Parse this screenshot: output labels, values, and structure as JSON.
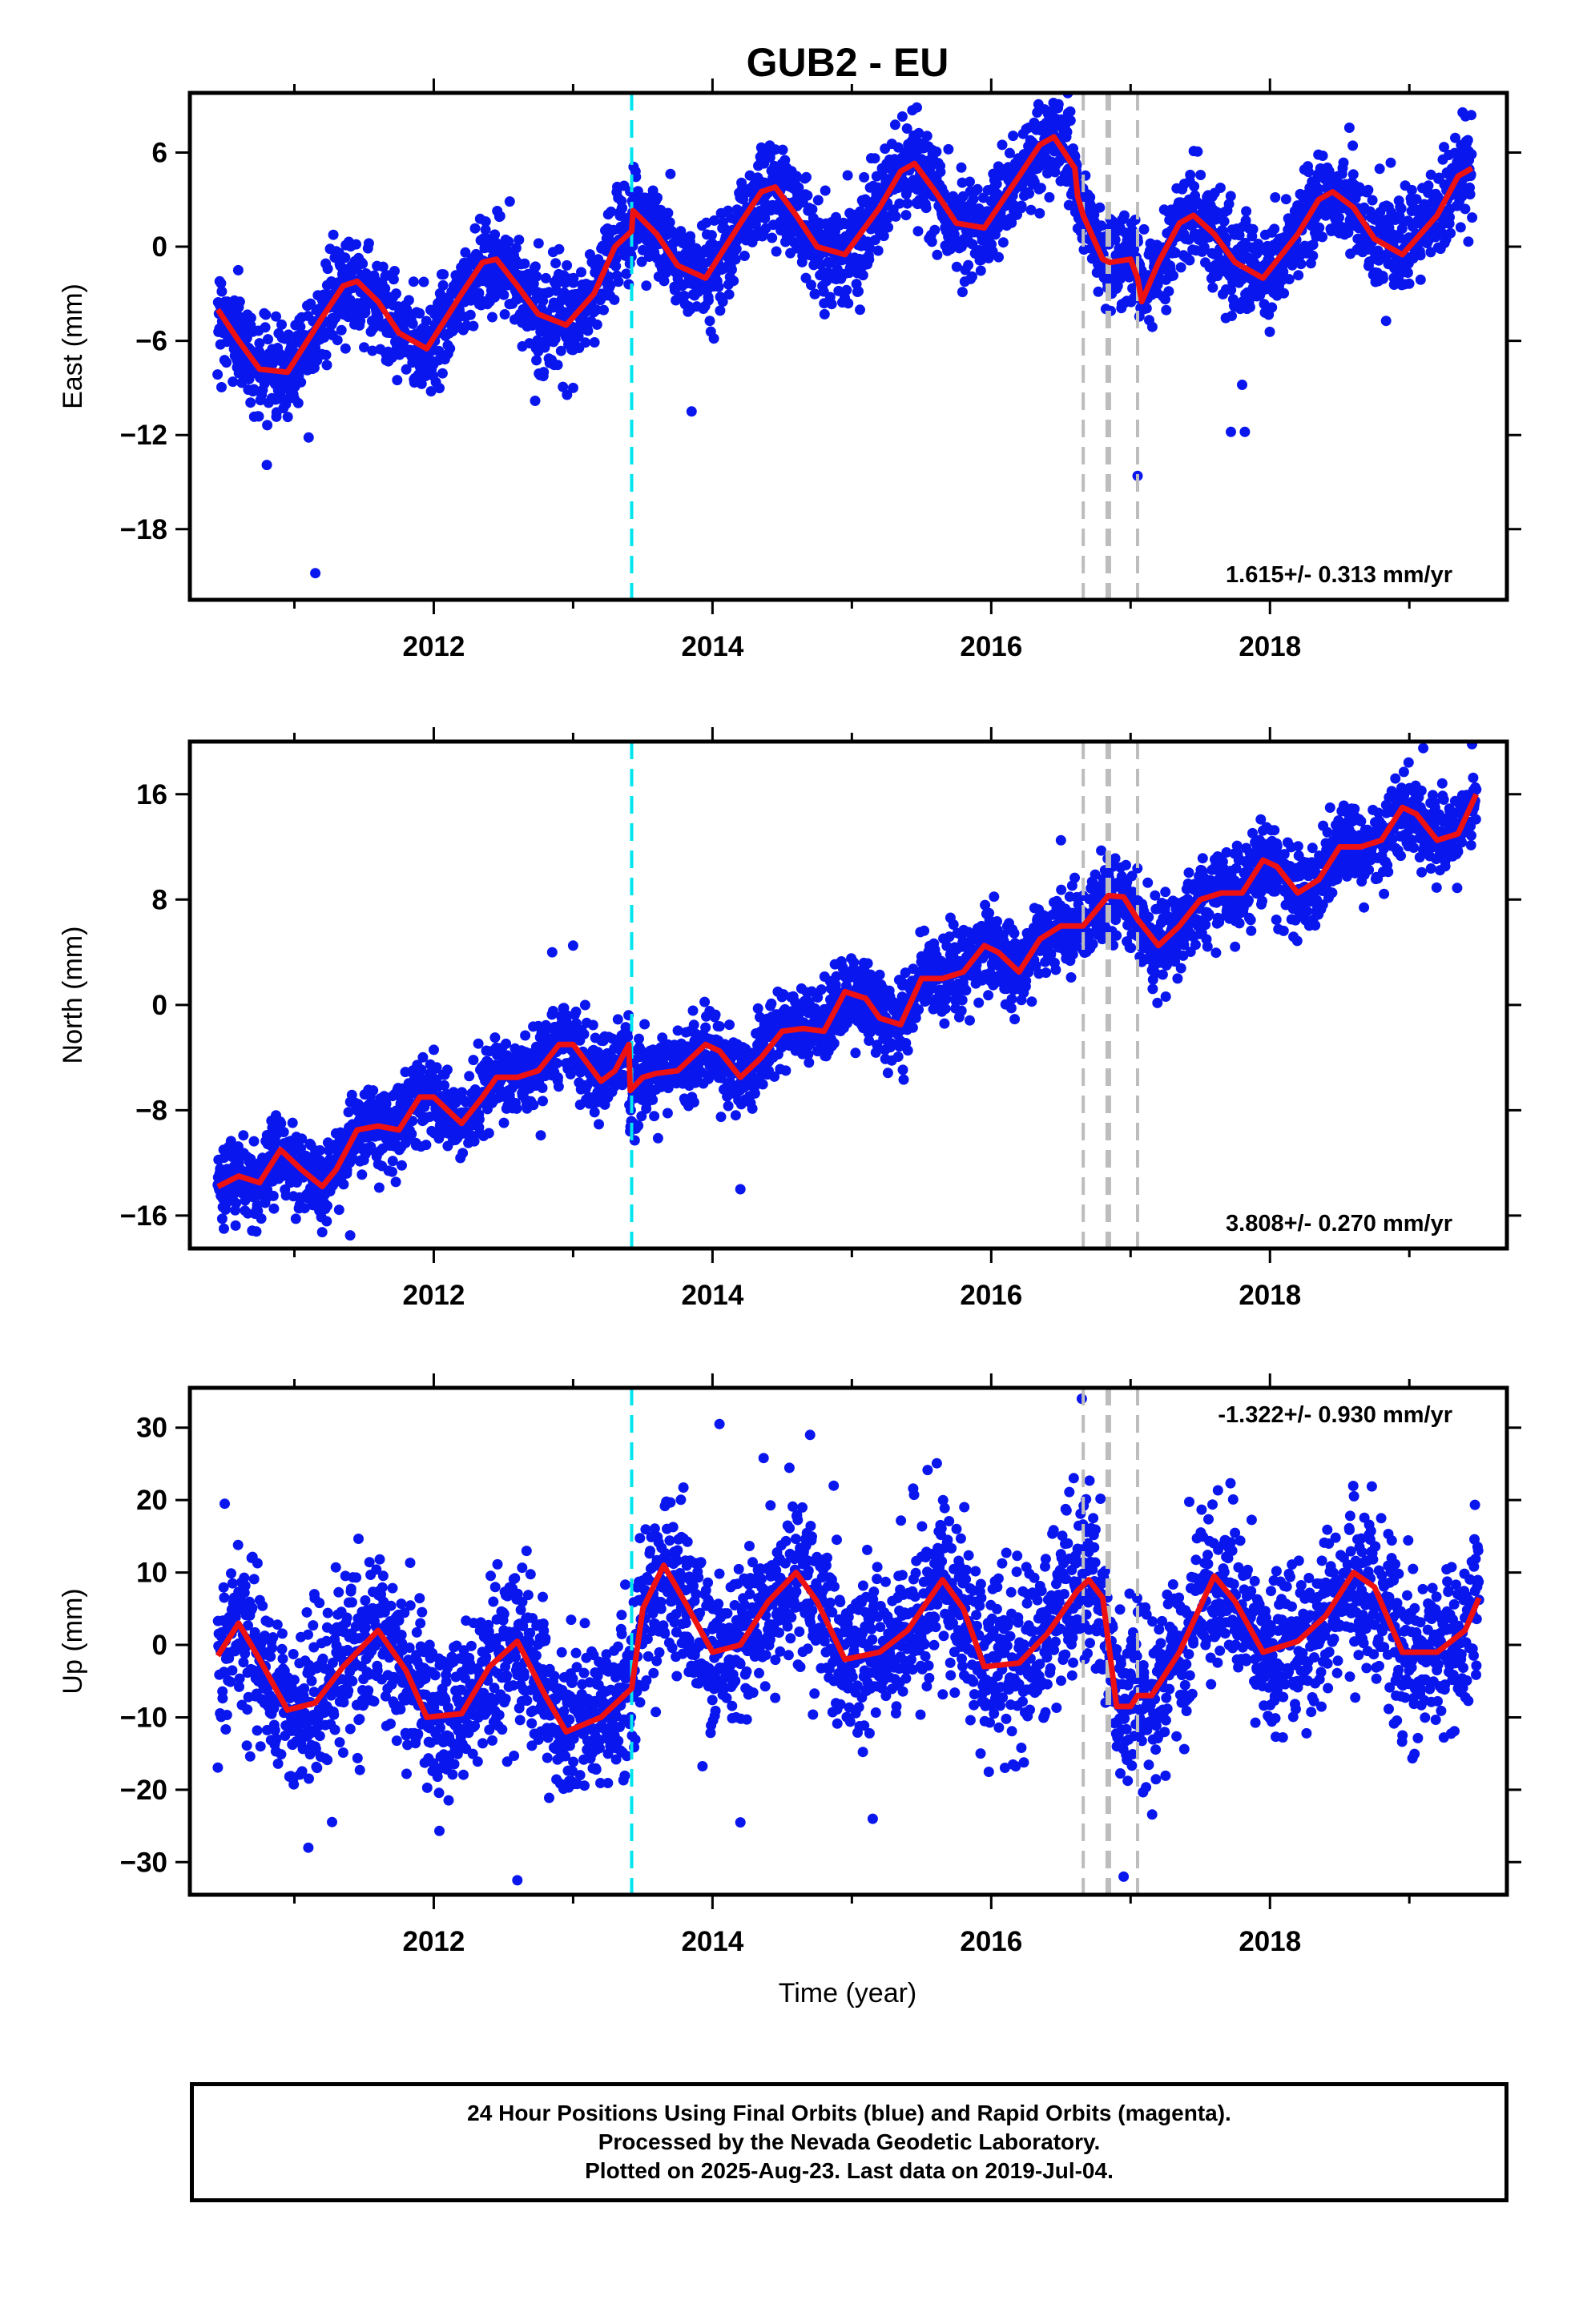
{
  "title": "GUB2 - EU",
  "xlabel": "Time (year)",
  "colors": {
    "points": "#0a16ee",
    "model": "#ee1111",
    "event_cyan": "#00e5ee",
    "event_gray": "#bdbdbd"
  },
  "chart_data": [
    {
      "type": "scatter",
      "name": "east",
      "ylabel": "East (mm)",
      "rate": "1.615+/- 0.313 mm/yr",
      "xlim": [
        2010.25,
        2019.7
      ],
      "ylim": [
        -22.5,
        9.8
      ],
      "xticks": [
        "2012",
        "2014",
        "2016",
        "2018"
      ],
      "yticks": [
        6,
        0,
        -6,
        -12,
        -18
      ],
      "ytick_labels": [
        "6",
        "0",
        "−6",
        "−12",
        "−18"
      ],
      "model": {
        "x": [
          2010.45,
          2010.6,
          2010.75,
          2010.95,
          2011.2,
          2011.35,
          2011.45,
          2011.6,
          2011.75,
          2011.95,
          2012.2,
          2012.35,
          2012.45,
          2012.6,
          2012.75,
          2012.95,
          2013.15,
          2013.3,
          2013.42,
          2013.43,
          2013.6,
          2013.75,
          2013.95,
          2014.2,
          2014.35,
          2014.45,
          2014.6,
          2014.75,
          2014.95,
          2015.2,
          2015.35,
          2015.45,
          2015.6,
          2015.75,
          2015.95,
          2016.2,
          2016.35,
          2016.45,
          2016.6,
          2016.62,
          2016.66,
          2016.8,
          2016.85,
          2017.0,
          2017.05,
          2017.08,
          2017.2,
          2017.35,
          2017.45,
          2017.6,
          2017.75,
          2017.95,
          2018.2,
          2018.35,
          2018.45,
          2018.6,
          2018.75,
          2018.95,
          2019.2,
          2019.35,
          2019.45
        ],
        "y": [
          -4.0,
          -6.0,
          -7.8,
          -8.0,
          -4.5,
          -2.5,
          -2.2,
          -3.5,
          -5.5,
          -6.5,
          -3.0,
          -1.0,
          -0.8,
          -2.5,
          -4.3,
          -5.0,
          -3.0,
          0.0,
          1.0,
          2.3,
          0.8,
          -1.2,
          -2.0,
          1.5,
          3.5,
          3.8,
          2.0,
          0.0,
          -0.5,
          2.5,
          4.8,
          5.3,
          3.5,
          1.5,
          1.2,
          4.5,
          6.5,
          7.0,
          5.0,
          3.2,
          2.0,
          -0.8,
          -1.0,
          -0.8,
          -2.0,
          -3.5,
          -1.0,
          1.5,
          2.0,
          0.8,
          -1.0,
          -2.0,
          0.8,
          3.0,
          3.5,
          2.5,
          0.5,
          -0.5,
          2.0,
          4.5,
          5.0
        ]
      },
      "model_breaks_after": [],
      "events": {
        "cyan": [
          2013.42
        ],
        "gray": [
          2016.66,
          2016.84,
          2017.05
        ],
        "gray_thick": [
          2016.84
        ]
      },
      "scatter": {
        "sigma": 1.5,
        "count": 3300,
        "outliers": [
          [
            2011.15,
            -20.8
          ],
          [
            2013.85,
            -10.5
          ],
          [
            2017.05,
            -14.6
          ],
          [
            2017.72,
            -11.8
          ],
          [
            2017.8,
            -8.8
          ],
          [
            2017.82,
            -11.8
          ],
          [
            2013.0,
            -9.0
          ]
        ]
      }
    },
    {
      "type": "scatter",
      "name": "north",
      "ylabel": "North (mm)",
      "rate": "3.808+/- 0.270 mm/yr",
      "xlim": [
        2010.25,
        2019.7
      ],
      "ylim": [
        -18.5,
        20.0
      ],
      "xticks": [
        "2012",
        "2014",
        "2016",
        "2018"
      ],
      "yticks": [
        16,
        8,
        0,
        -8,
        -16
      ],
      "ytick_labels": [
        "16",
        "8",
        "0",
        "−8",
        "−16"
      ],
      "model": {
        "x": [
          2010.45,
          2010.6,
          2010.75,
          2010.9,
          2011.05,
          2011.2,
          2011.3,
          2011.45,
          2011.6,
          2011.75,
          2011.9,
          2012.0,
          2012.1,
          2012.2,
          2012.35,
          2012.45,
          2012.6,
          2012.75,
          2012.9,
          2013.0,
          2013.2,
          2013.3,
          2013.4,
          2013.41,
          2013.5,
          2013.6,
          2013.75,
          2013.95,
          2014.05,
          2014.2,
          2014.35,
          2014.5,
          2014.65,
          2014.8,
          2014.95,
          2015.1,
          2015.2,
          2015.35,
          2015.5,
          2015.65,
          2015.8,
          2015.95,
          2016.05,
          2016.2,
          2016.35,
          2016.5,
          2016.66,
          2016.84,
          2016.95,
          2017.05,
          2017.2,
          2017.35,
          2017.5,
          2017.65,
          2017.8,
          2017.95,
          2018.05,
          2018.2,
          2018.35,
          2018.5,
          2018.65,
          2018.8,
          2018.95,
          2019.05,
          2019.2,
          2019.35,
          2019.48
        ],
        "y": [
          -13.8,
          -13.0,
          -13.5,
          -11.0,
          -12.5,
          -13.8,
          -12.5,
          -9.5,
          -9.2,
          -9.5,
          -7.0,
          -7.0,
          -8.0,
          -9.0,
          -7.0,
          -5.5,
          -5.5,
          -5.0,
          -3.0,
          -3.0,
          -5.8,
          -5.0,
          -3.0,
          -6.5,
          -5.5,
          -5.2,
          -5.0,
          -3.0,
          -3.5,
          -5.5,
          -4.0,
          -2.0,
          -1.8,
          -2.0,
          1.0,
          0.5,
          -1.0,
          -1.5,
          2.0,
          2.0,
          2.5,
          4.5,
          4.0,
          2.5,
          5.0,
          6.0,
          6.0,
          8.3,
          8.2,
          6.5,
          4.5,
          6.0,
          8.0,
          8.5,
          8.5,
          11.0,
          10.5,
          8.5,
          9.5,
          12.0,
          12.0,
          12.5,
          15.0,
          14.5,
          12.5,
          13.0,
          16.0
        ]
      },
      "model_breaks_after": [],
      "events": {
        "cyan": [
          2013.42
        ],
        "gray": [
          2016.66,
          2016.84,
          2017.05
        ],
        "gray_thick": [
          2016.84
        ]
      },
      "scatter": {
        "sigma": 1.5,
        "count": 3300,
        "outliers": [
          [
            2011.4,
            -17.5
          ],
          [
            2014.2,
            -14.0
          ],
          [
            2016.5,
            12.5
          ],
          [
            2019.1,
            19.5
          ],
          [
            2019.45,
            19.8
          ],
          [
            2012.85,
            4.0
          ],
          [
            2013.0,
            4.5
          ]
        ]
      }
    },
    {
      "type": "scatter",
      "name": "up",
      "ylabel": "Up (mm)",
      "rate": "-1.322+/- 0.930 mm/yr",
      "xlim": [
        2010.25,
        2019.7
      ],
      "ylim": [
        -34.5,
        35.5
      ],
      "xticks": [
        "2012",
        "2014",
        "2016",
        "2018"
      ],
      "yticks": [
        30,
        20,
        10,
        0,
        -10,
        -20,
        -30
      ],
      "ytick_labels": [
        "30",
        "20",
        "10",
        "0",
        "−10",
        "−20",
        "−30"
      ],
      "model": {
        "x": [
          2010.45,
          2010.6,
          2010.75,
          2010.95,
          2011.15,
          2011.35,
          2011.6,
          2011.8,
          2011.95,
          2012.2,
          2012.4,
          2012.6,
          2012.8,
          2012.95,
          2013.2,
          2013.42,
          2013.5,
          2013.65,
          2013.8,
          2014.0,
          2014.2,
          2014.4,
          2014.6,
          2014.75,
          2014.95,
          2015.2,
          2015.4,
          2015.65,
          2015.8,
          2015.95,
          2016.2,
          2016.4,
          2016.62,
          2016.7,
          2016.8,
          2016.9,
          2017.0,
          2017.05,
          2017.15,
          2017.35,
          2017.6,
          2017.75,
          2017.95,
          2018.2,
          2018.4,
          2018.6,
          2018.75,
          2018.95,
          2019.2,
          2019.4,
          2019.5
        ],
        "y": [
          -1.5,
          3.0,
          -2.0,
          -9.0,
          -8.0,
          -3.0,
          2.0,
          -3.5,
          -10.0,
          -9.5,
          -3.0,
          0.5,
          -7.0,
          -12.0,
          -10.0,
          -6.0,
          5.0,
          11.0,
          6.0,
          -1.0,
          0.0,
          6.0,
          10.0,
          6.0,
          -2.0,
          -1.0,
          2.0,
          9.0,
          5.0,
          -3.0,
          -2.5,
          1.5,
          7.5,
          9.0,
          6.5,
          -8.5,
          -8.5,
          -7.0,
          -7.0,
          -1.0,
          9.5,
          6.0,
          -1.0,
          0.5,
          4.0,
          10.0,
          8.0,
          -1.0,
          -1.0,
          2.0,
          6.5
        ]
      },
      "model_breaks_after": [],
      "events": {
        "cyan": [
          2013.42
        ],
        "gray": [
          2016.66,
          2016.84,
          2017.05
        ],
        "gray_thick": [
          2016.84
        ]
      },
      "scatter": {
        "sigma": 5.5,
        "count": 3300,
        "outliers": [
          [
            2016.65,
            34.0
          ],
          [
            2012.6,
            -32.5
          ],
          [
            2016.95,
            -32.0
          ],
          [
            2014.05,
            30.5
          ],
          [
            2014.7,
            29.0
          ],
          [
            2010.5,
            19.5
          ],
          [
            2011.1,
            -28.0
          ],
          [
            2015.15,
            -24.0
          ],
          [
            2014.2,
            -24.5
          ]
        ]
      }
    }
  ],
  "footer": {
    "line1": "24 Hour Positions Using Final Orbits (blue) and Rapid Orbits (magenta).",
    "line2": "Processed by the Nevada Geodetic Laboratory.",
    "line3": "Plotted on 2025-Aug-23. Last data on 2019-Jul-04."
  }
}
